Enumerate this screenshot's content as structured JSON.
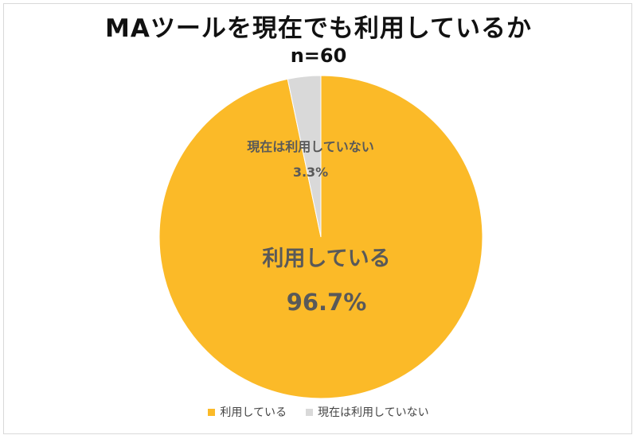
{
  "chart_data": {
    "type": "pie",
    "title": "MAツールを現在でも利用しているか",
    "subtitle": "n=60",
    "start_angle_deg": 0,
    "direction": "clockwise",
    "slices": [
      {
        "label": "利用している",
        "value": 96.7,
        "value_label": "96.7%",
        "color": "#FBBA28"
      },
      {
        "label": "現在は利用していない",
        "value": 3.3,
        "value_label": "3.3%",
        "color": "#D9D9D9"
      }
    ],
    "legend": {
      "position": "bottom",
      "items": [
        {
          "label": "利用している",
          "color": "#FBBA28"
        },
        {
          "label": "現在は利用していない",
          "color": "#D9D9D9"
        }
      ]
    }
  }
}
